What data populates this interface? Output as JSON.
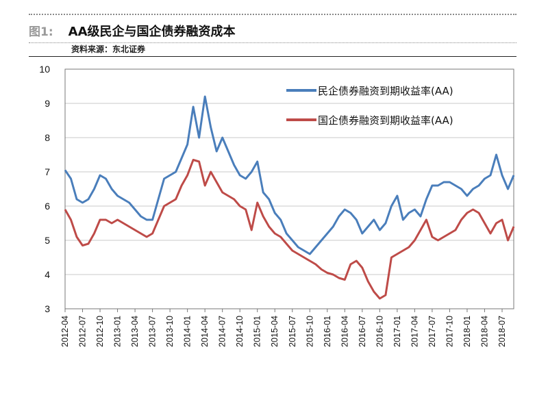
{
  "figure": {
    "number": "图1:",
    "title": "AA级民企与国企债券融资成本",
    "source": "资料来源：东北证券"
  },
  "chart_data": {
    "type": "line",
    "title": "AA级民企与国企债券融资成本",
    "xlabel": "",
    "ylabel": "",
    "ylim": [
      3,
      10
    ],
    "yticks": [
      "3",
      "4",
      "5",
      "6",
      "7",
      "8",
      "9",
      "10"
    ],
    "grid": true,
    "legend_position": "top-right",
    "x_range": [
      "2012-04",
      "2018-09"
    ],
    "x_tick_labels": [
      "2012-04",
      "2012-07",
      "2012-10",
      "2013-01",
      "2013-04",
      "2013-07",
      "2013-10",
      "2014-01",
      "2014-04",
      "2014-07",
      "2014-10",
      "2015-01",
      "2015-04",
      "2015-07",
      "2015-10",
      "2016-01",
      "2016-04",
      "2016-07",
      "2016-10",
      "2017-01",
      "2017-04",
      "2017-07",
      "2017-10",
      "2018-01",
      "2018-04",
      "2018-07"
    ],
    "series": [
      {
        "name": "民企债券融资到期收益率(AA)",
        "color": "#4a7ebb",
        "points": [
          [
            "2012-04",
            7.05
          ],
          [
            "2012-05",
            6.8
          ],
          [
            "2012-06",
            6.2
          ],
          [
            "2012-07",
            6.1
          ],
          [
            "2012-08",
            6.2
          ],
          [
            "2012-09",
            6.5
          ],
          [
            "2012-10",
            6.9
          ],
          [
            "2012-11",
            6.8
          ],
          [
            "2012-12",
            6.5
          ],
          [
            "2013-01",
            6.3
          ],
          [
            "2013-02",
            6.2
          ],
          [
            "2013-03",
            6.1
          ],
          [
            "2013-04",
            5.9
          ],
          [
            "2013-05",
            5.7
          ],
          [
            "2013-06",
            5.6
          ],
          [
            "2013-07",
            5.6
          ],
          [
            "2013-08",
            6.2
          ],
          [
            "2013-09",
            6.8
          ],
          [
            "2013-10",
            6.9
          ],
          [
            "2013-11",
            7.0
          ],
          [
            "2013-12",
            7.4
          ],
          [
            "2014-01",
            7.8
          ],
          [
            "2014-02",
            8.9
          ],
          [
            "2014-03",
            8.0
          ],
          [
            "2014-04",
            9.2
          ],
          [
            "2014-05",
            8.3
          ],
          [
            "2014-06",
            7.6
          ],
          [
            "2014-07",
            8.0
          ],
          [
            "2014-08",
            7.6
          ],
          [
            "2014-09",
            7.2
          ],
          [
            "2014-10",
            6.9
          ],
          [
            "2014-11",
            6.8
          ],
          [
            "2014-12",
            7.0
          ],
          [
            "2015-01",
            7.3
          ],
          [
            "2015-02",
            6.4
          ],
          [
            "2015-03",
            6.2
          ],
          [
            "2015-04",
            5.8
          ],
          [
            "2015-05",
            5.6
          ],
          [
            "2015-06",
            5.2
          ],
          [
            "2015-07",
            5.0
          ],
          [
            "2015-08",
            4.8
          ],
          [
            "2015-09",
            4.7
          ],
          [
            "2015-10",
            4.6
          ],
          [
            "2015-11",
            4.8
          ],
          [
            "2015-12",
            5.0
          ],
          [
            "2016-01",
            5.2
          ],
          [
            "2016-02",
            5.4
          ],
          [
            "2016-03",
            5.7
          ],
          [
            "2016-04",
            5.9
          ],
          [
            "2016-05",
            5.8
          ],
          [
            "2016-06",
            5.6
          ],
          [
            "2016-07",
            5.2
          ],
          [
            "2016-08",
            5.4
          ],
          [
            "2016-09",
            5.6
          ],
          [
            "2016-10",
            5.3
          ],
          [
            "2016-11",
            5.5
          ],
          [
            "2016-12",
            6.0
          ],
          [
            "2017-01",
            6.3
          ],
          [
            "2017-02",
            5.6
          ],
          [
            "2017-03",
            5.8
          ],
          [
            "2017-04",
            5.9
          ],
          [
            "2017-05",
            5.7
          ],
          [
            "2017-06",
            6.2
          ],
          [
            "2017-07",
            6.6
          ],
          [
            "2017-08",
            6.6
          ],
          [
            "2017-09",
            6.7
          ],
          [
            "2017-10",
            6.7
          ],
          [
            "2017-11",
            6.6
          ],
          [
            "2017-12",
            6.5
          ],
          [
            "2018-01",
            6.3
          ],
          [
            "2018-02",
            6.5
          ],
          [
            "2018-03",
            6.6
          ],
          [
            "2018-04",
            6.8
          ],
          [
            "2018-05",
            6.9
          ],
          [
            "2018-06",
            7.5
          ],
          [
            "2018-07",
            6.9
          ],
          [
            "2018-08",
            6.5
          ],
          [
            "2018-09",
            6.9
          ]
        ]
      },
      {
        "name": "国企债券融资到期收益率(AA)",
        "color": "#be4b48",
        "points": [
          [
            "2012-04",
            5.9
          ],
          [
            "2012-05",
            5.6
          ],
          [
            "2012-06",
            5.1
          ],
          [
            "2012-07",
            4.85
          ],
          [
            "2012-08",
            4.9
          ],
          [
            "2012-09",
            5.2
          ],
          [
            "2012-10",
            5.6
          ],
          [
            "2012-11",
            5.6
          ],
          [
            "2012-12",
            5.5
          ],
          [
            "2013-01",
            5.6
          ],
          [
            "2013-02",
            5.5
          ],
          [
            "2013-03",
            5.4
          ],
          [
            "2013-04",
            5.3
          ],
          [
            "2013-05",
            5.2
          ],
          [
            "2013-06",
            5.1
          ],
          [
            "2013-07",
            5.2
          ],
          [
            "2013-08",
            5.6
          ],
          [
            "2013-09",
            6.0
          ],
          [
            "2013-10",
            6.1
          ],
          [
            "2013-11",
            6.2
          ],
          [
            "2013-12",
            6.6
          ],
          [
            "2014-01",
            6.9
          ],
          [
            "2014-02",
            7.35
          ],
          [
            "2014-03",
            7.3
          ],
          [
            "2014-04",
            6.6
          ],
          [
            "2014-05",
            7.0
          ],
          [
            "2014-06",
            6.7
          ],
          [
            "2014-07",
            6.4
          ],
          [
            "2014-08",
            6.3
          ],
          [
            "2014-09",
            6.2
          ],
          [
            "2014-10",
            6.0
          ],
          [
            "2014-11",
            5.9
          ],
          [
            "2014-12",
            5.3
          ],
          [
            "2015-01",
            6.1
          ],
          [
            "2015-02",
            5.7
          ],
          [
            "2015-03",
            5.4
          ],
          [
            "2015-04",
            5.2
          ],
          [
            "2015-05",
            5.1
          ],
          [
            "2015-06",
            4.9
          ],
          [
            "2015-07",
            4.7
          ],
          [
            "2015-08",
            4.6
          ],
          [
            "2015-09",
            4.5
          ],
          [
            "2015-10",
            4.4
          ],
          [
            "2015-11",
            4.3
          ],
          [
            "2015-12",
            4.15
          ],
          [
            "2016-01",
            4.05
          ],
          [
            "2016-02",
            4.0
          ],
          [
            "2016-03",
            3.9
          ],
          [
            "2016-04",
            3.85
          ],
          [
            "2016-05",
            4.3
          ],
          [
            "2016-06",
            4.4
          ],
          [
            "2016-07",
            4.2
          ],
          [
            "2016-08",
            3.8
          ],
          [
            "2016-09",
            3.5
          ],
          [
            "2016-10",
            3.3
          ],
          [
            "2016-11",
            3.4
          ],
          [
            "2016-12",
            4.5
          ],
          [
            "2017-01",
            4.6
          ],
          [
            "2017-02",
            4.7
          ],
          [
            "2017-03",
            4.8
          ],
          [
            "2017-04",
            5.0
          ],
          [
            "2017-05",
            5.3
          ],
          [
            "2017-06",
            5.6
          ],
          [
            "2017-07",
            5.1
          ],
          [
            "2017-08",
            5.0
          ],
          [
            "2017-09",
            5.1
          ],
          [
            "2017-10",
            5.2
          ],
          [
            "2017-11",
            5.3
          ],
          [
            "2017-12",
            5.6
          ],
          [
            "2018-01",
            5.8
          ],
          [
            "2018-02",
            5.9
          ],
          [
            "2018-03",
            5.8
          ],
          [
            "2018-04",
            5.5
          ],
          [
            "2018-05",
            5.2
          ],
          [
            "2018-06",
            5.5
          ],
          [
            "2018-07",
            5.6
          ],
          [
            "2018-08",
            5.0
          ],
          [
            "2018-09",
            5.4
          ]
        ]
      }
    ]
  }
}
